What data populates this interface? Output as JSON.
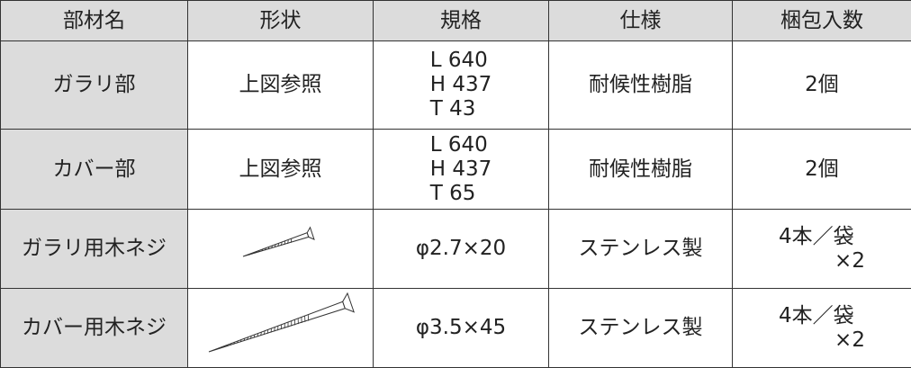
{
  "table": {
    "headers": [
      "部材名",
      "形状",
      "規格",
      "仕様",
      "梱包入数"
    ],
    "rows": [
      {
        "name": "ガラリ部",
        "shape": "上図参照",
        "spec": [
          "L 640",
          "H 437",
          "T 43"
        ],
        "material": "耐候性樹脂",
        "quantity": [
          "2個"
        ]
      },
      {
        "name": "カバー部",
        "shape": "上図参照",
        "spec": [
          "L 640",
          "H 437",
          "T 65"
        ],
        "material": "耐候性樹脂",
        "quantity": [
          "2個"
        ]
      },
      {
        "name": "ガラリ用木ネジ",
        "spec": [
          "φ2.7×20"
        ],
        "material": "ステンレス製",
        "quantity": [
          "4本／袋",
          "×2"
        ]
      },
      {
        "name": "カバー用木ネジ",
        "spec": [
          "φ3.5×45"
        ],
        "material": "ステンレス製",
        "quantity": [
          "4本／袋",
          "×2"
        ]
      }
    ]
  }
}
